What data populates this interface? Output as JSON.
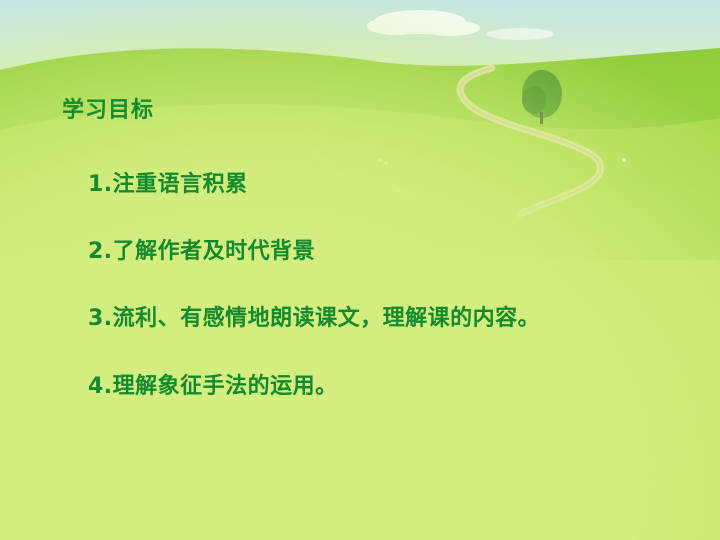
{
  "slide": {
    "title": "学习目标",
    "objectives": [
      "1.注重语言积累",
      "2.了解作者及时代背景",
      "3.流利、有感情地朗读课文，理解课的内容。",
      "4.理解象征手法的运用。"
    ]
  },
  "colors": {
    "text": "#128c2d",
    "background": "#d2ef7a",
    "sky": "#bfe3f0",
    "grass": "#a9d84a"
  }
}
